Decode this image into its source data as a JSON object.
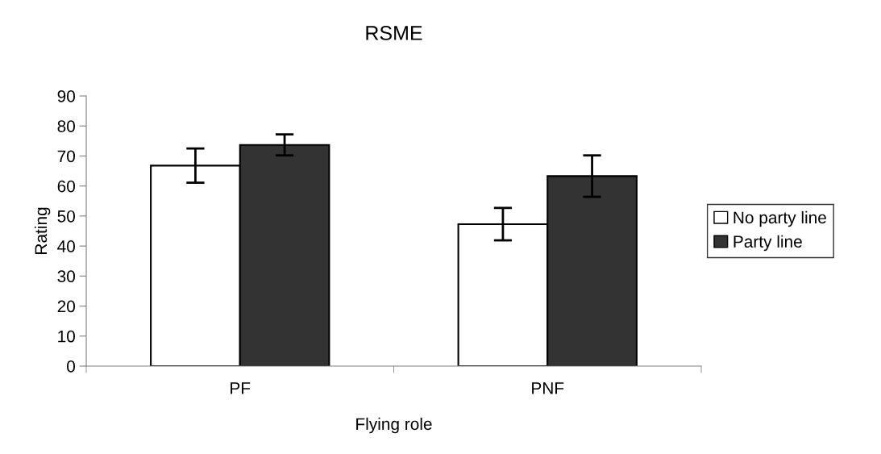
{
  "chart_data": {
    "type": "bar",
    "title": "RSME",
    "xlabel": "Flying role",
    "ylabel": "Rating",
    "categories": [
      "PF",
      "PNF"
    ],
    "series": [
      {
        "name": "No party line",
        "color": "#ffffff",
        "values": [
          66.8,
          47.3
        ],
        "errors": [
          5.7,
          5.4
        ]
      },
      {
        "name": "Party line",
        "color": "#333333",
        "values": [
          73.7,
          63.3
        ],
        "errors": [
          3.5,
          6.9
        ]
      }
    ],
    "ylim": [
      0,
      90
    ],
    "yticks": [
      0,
      10,
      20,
      30,
      40,
      50,
      60,
      70,
      80,
      90
    ],
    "grid": false,
    "legend": "right"
  }
}
